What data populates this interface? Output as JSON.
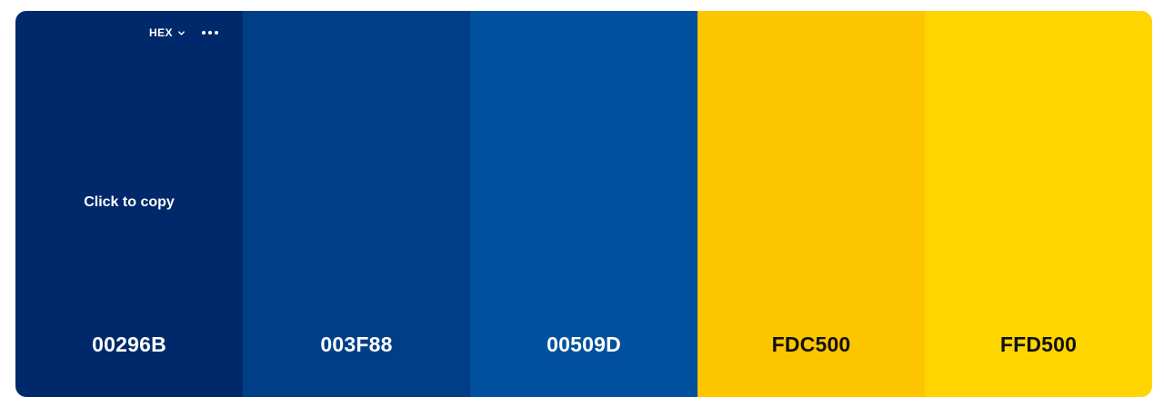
{
  "toolbar": {
    "format_label": "HEX",
    "format_icon": "chevron-down-icon",
    "more_icon": "more-horizontal-icon"
  },
  "hint": {
    "label": "Click to copy"
  },
  "swatches": [
    {
      "code": "00296B",
      "color": "#00296B",
      "text_tone": "light"
    },
    {
      "code": "003F88",
      "color": "#003F88",
      "text_tone": "light"
    },
    {
      "code": "00509D",
      "color": "#00509D",
      "text_tone": "light"
    },
    {
      "code": "FDC500",
      "color": "#FDC500",
      "text_tone": "dark"
    },
    {
      "code": "FFD500",
      "color": "#FFD500",
      "text_tone": "dark"
    }
  ]
}
